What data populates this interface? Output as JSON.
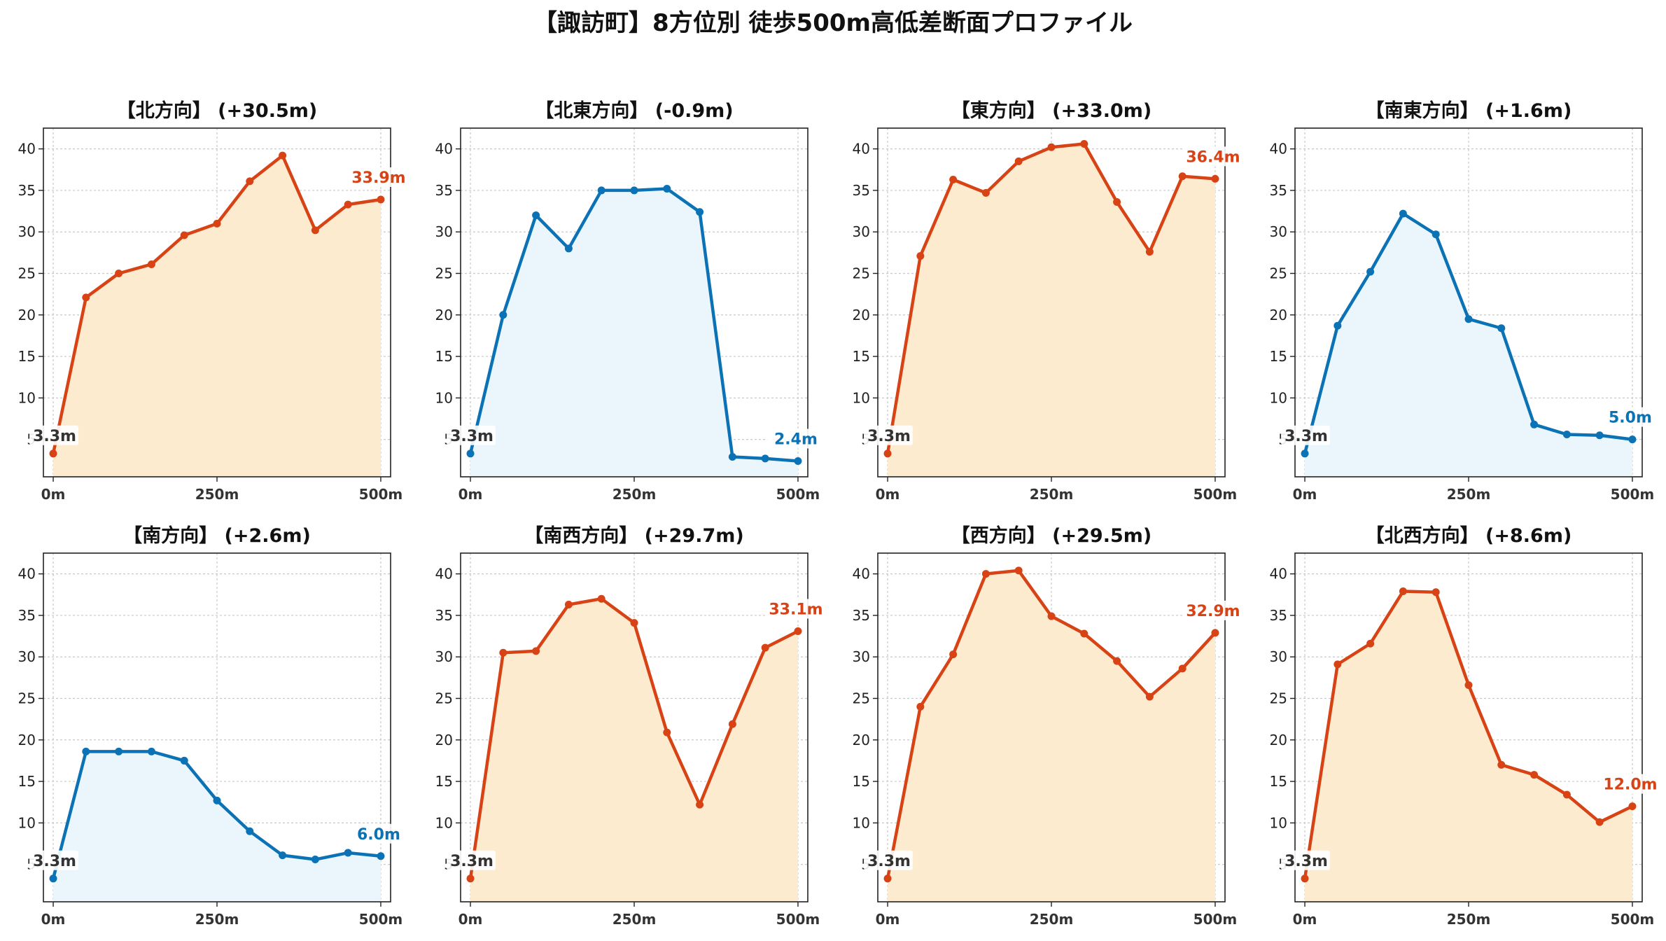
{
  "title": "【諏訪町】8方位別 徒歩500m高低差断面プロファイル",
  "colors": {
    "up_line": "#d84315",
    "up_fill": "#fdebd0",
    "down_line": "#0b72b5",
    "down_fill": "#eaf6fc"
  },
  "chart_data": [
    {
      "type": "line",
      "title": "【北方向】 (+30.5m)",
      "trend": "up",
      "x": [
        0,
        50,
        100,
        150,
        200,
        250,
        300,
        350,
        400,
        450,
        500
      ],
      "values": [
        3.3,
        22.1,
        25.0,
        26.1,
        29.6,
        31.0,
        36.1,
        39.2,
        30.2,
        33.3,
        33.9
      ],
      "start_label": "3.3m",
      "end_label": "33.9m",
      "xticks": [
        "0m",
        "250m",
        "500m"
      ],
      "yticks": [
        "5",
        "10",
        "15",
        "20",
        "25",
        "30",
        "35",
        "40"
      ],
      "xlim": [
        -15,
        515
      ],
      "ylim": [
        0.5,
        42.5
      ],
      "grid": true
    },
    {
      "type": "line",
      "title": "【北東方向】 (-0.9m)",
      "trend": "down",
      "x": [
        0,
        50,
        100,
        150,
        200,
        250,
        300,
        350,
        400,
        450,
        500
      ],
      "values": [
        3.3,
        20.0,
        32.0,
        28.0,
        35.0,
        35.0,
        35.2,
        32.4,
        2.9,
        2.7,
        2.4
      ],
      "start_label": "3.3m",
      "end_label": "2.4m",
      "xticks": [
        "0m",
        "250m",
        "500m"
      ],
      "yticks": [
        "5",
        "10",
        "15",
        "20",
        "25",
        "30",
        "35",
        "40"
      ],
      "xlim": [
        -15,
        515
      ],
      "ylim": [
        0.5,
        42.5
      ],
      "grid": true
    },
    {
      "type": "line",
      "title": "【東方向】 (+33.0m)",
      "trend": "up",
      "x": [
        0,
        50,
        100,
        150,
        200,
        250,
        300,
        350,
        400,
        450,
        500
      ],
      "values": [
        3.3,
        27.1,
        36.3,
        34.7,
        38.5,
        40.2,
        40.6,
        33.6,
        27.6,
        36.7,
        36.4
      ],
      "start_label": "3.3m",
      "end_label": "36.4m",
      "xticks": [
        "0m",
        "250m",
        "500m"
      ],
      "yticks": [
        "5",
        "10",
        "15",
        "20",
        "25",
        "30",
        "35",
        "40"
      ],
      "xlim": [
        -15,
        515
      ],
      "ylim": [
        0.5,
        42.5
      ],
      "grid": true
    },
    {
      "type": "line",
      "title": "【南東方向】 (+1.6m)",
      "trend": "down",
      "x": [
        0,
        50,
        100,
        150,
        200,
        250,
        300,
        350,
        400,
        450,
        500
      ],
      "values": [
        3.3,
        18.7,
        25.2,
        32.2,
        29.7,
        19.5,
        18.4,
        6.8,
        5.6,
        5.5,
        5.0
      ],
      "start_label": "3.3m",
      "end_label": "5.0m",
      "xticks": [
        "0m",
        "250m",
        "500m"
      ],
      "yticks": [
        "5",
        "10",
        "15",
        "20",
        "25",
        "30",
        "35",
        "40"
      ],
      "xlim": [
        -15,
        515
      ],
      "ylim": [
        0.5,
        42.5
      ],
      "grid": true
    },
    {
      "type": "line",
      "title": "【南方向】 (+2.6m)",
      "trend": "down",
      "x": [
        0,
        50,
        100,
        150,
        200,
        250,
        300,
        350,
        400,
        450,
        500
      ],
      "values": [
        3.3,
        18.6,
        18.6,
        18.6,
        17.5,
        12.7,
        9.0,
        6.1,
        5.6,
        6.4,
        6.0
      ],
      "start_label": "3.3m",
      "end_label": "6.0m",
      "xticks": [
        "0m",
        "250m",
        "500m"
      ],
      "yticks": [
        "5",
        "10",
        "15",
        "20",
        "25",
        "30",
        "35",
        "40"
      ],
      "xlim": [
        -15,
        515
      ],
      "ylim": [
        0.5,
        42.5
      ],
      "grid": true
    },
    {
      "type": "line",
      "title": "【南西方向】 (+29.7m)",
      "trend": "up",
      "x": [
        0,
        50,
        100,
        150,
        200,
        250,
        300,
        350,
        400,
        450,
        500
      ],
      "values": [
        3.3,
        30.5,
        30.7,
        36.3,
        37.0,
        34.1,
        20.9,
        12.2,
        21.9,
        31.1,
        33.1
      ],
      "start_label": "3.3m",
      "end_label": "33.1m",
      "xticks": [
        "0m",
        "250m",
        "500m"
      ],
      "yticks": [
        "5",
        "10",
        "15",
        "20",
        "25",
        "30",
        "35",
        "40"
      ],
      "xlim": [
        -15,
        515
      ],
      "ylim": [
        0.5,
        42.5
      ],
      "grid": true
    },
    {
      "type": "line",
      "title": "【西方向】 (+29.5m)",
      "trend": "up",
      "x": [
        0,
        50,
        100,
        150,
        200,
        250,
        300,
        350,
        400,
        450,
        500
      ],
      "values": [
        3.3,
        24.0,
        30.3,
        40.0,
        40.4,
        34.9,
        32.8,
        29.5,
        25.2,
        28.6,
        32.9
      ],
      "start_label": "3.3m",
      "end_label": "32.9m",
      "xticks": [
        "0m",
        "250m",
        "500m"
      ],
      "yticks": [
        "5",
        "10",
        "15",
        "20",
        "25",
        "30",
        "35",
        "40"
      ],
      "xlim": [
        -15,
        515
      ],
      "ylim": [
        0.5,
        42.5
      ],
      "grid": true
    },
    {
      "type": "line",
      "title": "【北西方向】 (+8.6m)",
      "trend": "up",
      "x": [
        0,
        50,
        100,
        150,
        200,
        250,
        300,
        350,
        400,
        450,
        500
      ],
      "values": [
        3.3,
        29.1,
        31.6,
        37.9,
        37.8,
        26.6,
        17.0,
        15.8,
        13.4,
        10.1,
        12.0
      ],
      "start_label": "3.3m",
      "end_label": "12.0m",
      "xticks": [
        "0m",
        "250m",
        "500m"
      ],
      "yticks": [
        "5",
        "10",
        "15",
        "20",
        "25",
        "30",
        "35",
        "40"
      ],
      "xlim": [
        -15,
        515
      ],
      "ylim": [
        0.5,
        42.5
      ],
      "grid": true
    }
  ]
}
